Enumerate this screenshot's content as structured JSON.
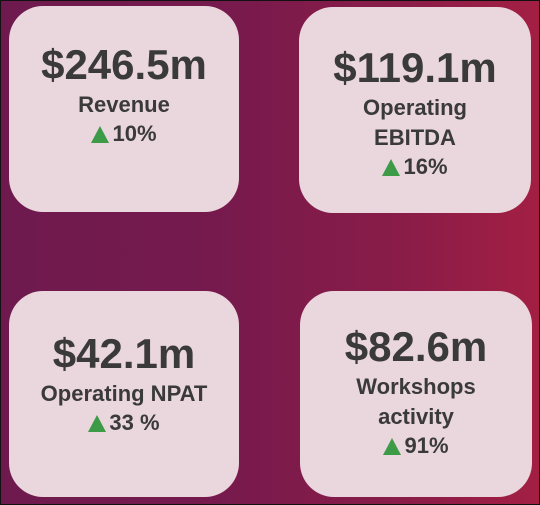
{
  "cards": [
    {
      "amount": "$246.5m",
      "label_lines": [
        "Revenue"
      ],
      "change": "10%"
    },
    {
      "amount": "$119.1m",
      "label_lines": [
        "Operating",
        "EBITDA"
      ],
      "change": "16%"
    },
    {
      "amount": "$42.1m",
      "label_lines": [
        "Operating NPAT"
      ],
      "change": "33 %"
    },
    {
      "amount": "$82.6m",
      "label_lines": [
        "Workshops",
        "activity"
      ],
      "change": "91%"
    }
  ],
  "colors": {
    "card_bg": "#ead6dd",
    "up_arrow": "#3d9a47",
    "text": "#3a3a3a",
    "background_start": "#6e1a4f",
    "background_end": "#a31f43"
  },
  "icons": {
    "change": "triangle-up-icon"
  }
}
